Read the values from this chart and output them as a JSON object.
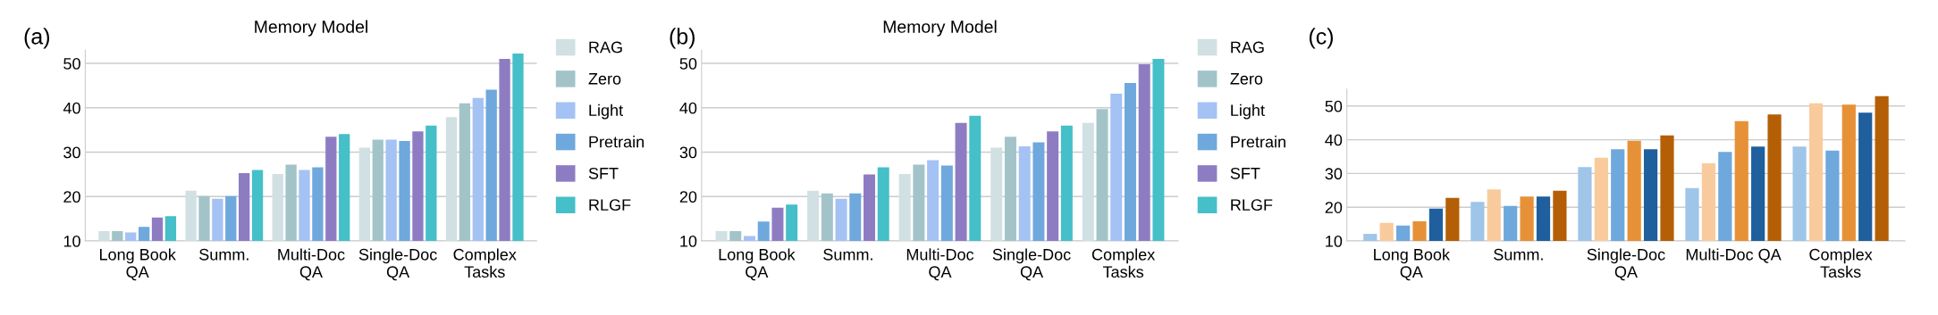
{
  "chart_data": [
    {
      "type": "bar",
      "title": "Memory Model",
      "annotations": [
        "(a)"
      ],
      "categories": [
        "Long Book\nQA",
        "Summ.",
        "Multi-Doc\nQA",
        "Single-Doc\nQA",
        "Complex\nTasks"
      ],
      "ylim": [
        10,
        53
      ],
      "yticks": [
        10,
        20,
        30,
        40,
        50
      ],
      "grid": "y",
      "legend": "right",
      "series": [
        {
          "name": "RAG",
          "color": "#d0e0e3",
          "values": [
            12.2,
            21.3,
            25.1,
            31.0,
            37.9
          ]
        },
        {
          "name": "Zero",
          "color": "#a2c4c9",
          "values": [
            12.2,
            20.1,
            27.2,
            32.8,
            41.0
          ]
        },
        {
          "name": "Light",
          "color": "#a4c2f4",
          "values": [
            11.9,
            19.5,
            26.0,
            32.8,
            42.2
          ]
        },
        {
          "name": "Pretrain",
          "color": "#6fa8dc",
          "values": [
            13.2,
            20.1,
            26.6,
            32.5,
            44.1
          ]
        },
        {
          "name": "SFT",
          "color": "#8e7cc3",
          "values": [
            15.3,
            25.3,
            33.5,
            34.7,
            51.0
          ]
        },
        {
          "name": "RLGF",
          "color": "#45bfc8",
          "values": [
            15.6,
            26.0,
            34.1,
            36.0,
            52.2
          ]
        }
      ]
    },
    {
      "type": "bar",
      "title": "Memory Model",
      "annotations": [
        "(b)"
      ],
      "categories": [
        "Long Book\nQA",
        "Summ.",
        "Multi-Doc\nQA",
        "Single-Doc\nQA",
        "Complex\nTasks"
      ],
      "ylim": [
        10,
        53
      ],
      "yticks": [
        10,
        20,
        30,
        40,
        50
      ],
      "grid": "y",
      "legend": "right",
      "series": [
        {
          "name": "RAG",
          "color": "#d0e0e3",
          "values": [
            12.2,
            21.3,
            25.1,
            31.0,
            36.6
          ]
        },
        {
          "name": "Zero",
          "color": "#a2c4c9",
          "values": [
            12.2,
            20.7,
            27.2,
            33.5,
            39.7
          ]
        },
        {
          "name": "Light",
          "color": "#a4c2f4",
          "values": [
            11.1,
            19.5,
            28.2,
            31.3,
            43.2
          ]
        },
        {
          "name": "Pretrain",
          "color": "#6fa8dc",
          "values": [
            14.4,
            20.7,
            27.0,
            32.2,
            45.6
          ]
        },
        {
          "name": "SFT",
          "color": "#8e7cc3",
          "values": [
            17.5,
            25.0,
            36.6,
            34.7,
            49.8
          ]
        },
        {
          "name": "RLGF",
          "color": "#45bfc8",
          "values": [
            18.2,
            26.6,
            38.2,
            36.0,
            51.0
          ]
        }
      ]
    },
    {
      "type": "bar",
      "annotations": [
        "(c)"
      ],
      "categories": [
        "Long Book\nQA",
        "Summ.",
        "Single-Doc\nQA",
        "Multi-Doc QA",
        "Complex\nTasks"
      ],
      "ylim": [
        10,
        55
      ],
      "yticks": [
        10,
        20,
        30,
        40,
        50
      ],
      "grid": "y",
      "series": [
        {
          "color": "#9fc5e8",
          "values": [
            12.1,
            21.6,
            31.9,
            25.7,
            38.0
          ]
        },
        {
          "color": "#f9cb9c",
          "values": [
            15.4,
            25.3,
            34.7,
            33.0,
            50.8
          ]
        },
        {
          "color": "#6fa8dc",
          "values": [
            14.6,
            20.4,
            37.2,
            36.4,
            36.8
          ]
        },
        {
          "color": "#e69138",
          "values": [
            15.8,
            23.2,
            39.7,
            45.5,
            50.4
          ]
        },
        {
          "color": "#1f5f9e",
          "values": [
            19.6,
            23.2,
            37.2,
            38.0,
            48.0
          ]
        },
        {
          "color": "#b45f06",
          "values": [
            22.8,
            24.9,
            41.3,
            47.5,
            52.9
          ]
        }
      ]
    }
  ]
}
